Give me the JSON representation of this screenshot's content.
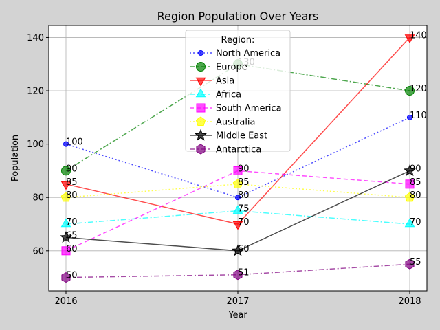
{
  "chart_data": {
    "type": "line",
    "title": "Region Population Over Years",
    "xlabel": "Year",
    "ylabel": "Population",
    "x": [
      2016,
      2017,
      2018
    ],
    "x_tick_labels": [
      "2016",
      "2017",
      "2018"
    ],
    "xlim": [
      2015.9,
      2018.1
    ],
    "ylim": [
      45,
      144.5
    ],
    "y_ticks": [
      60,
      80,
      100,
      120,
      140
    ],
    "y_tick_labels": [
      "60",
      "80",
      "100",
      "120",
      "140"
    ],
    "grid": true,
    "legend": {
      "title": "Region:",
      "placement": "top-center"
    },
    "series": [
      {
        "name": "North America",
        "values": [
          100,
          80,
          110
        ],
        "labels": [
          "100",
          "80",
          "110"
        ],
        "color": "#0000ff",
        "dash": "dotted",
        "marker": "circle",
        "marker_size": "small"
      },
      {
        "name": "Europe",
        "values": [
          90,
          130,
          120
        ],
        "labels": [
          "90",
          "130",
          "120"
        ],
        "color": "#008000",
        "dash": "dashdot",
        "marker": "circle",
        "marker_size": "large"
      },
      {
        "name": "Asia",
        "values": [
          85,
          70,
          140
        ],
        "labels": [
          "85",
          "70",
          "140"
        ],
        "color": "#ff0000",
        "dash": "solid",
        "marker": "triangle-down",
        "marker_size": "large"
      },
      {
        "name": "Africa",
        "values": [
          70,
          75,
          70
        ],
        "labels": [
          "70",
          "75",
          "70"
        ],
        "color": "#00ffff",
        "dash": "dashdot",
        "marker": "triangle-up",
        "marker_size": "large"
      },
      {
        "name": "South America",
        "values": [
          60,
          90,
          85
        ],
        "labels": [
          "60",
          "90",
          "85"
        ],
        "color": "#ff00ff",
        "dash": "dashed",
        "marker": "square",
        "marker_size": "large"
      },
      {
        "name": "Australia",
        "values": [
          80,
          85,
          80
        ],
        "labels": [
          "80",
          "85",
          "80"
        ],
        "color": "#ffff00",
        "dash": "dotted",
        "marker": "pentagon",
        "marker_size": "large"
      },
      {
        "name": "Middle East",
        "values": [
          65,
          60,
          90
        ],
        "labels": [
          "65",
          "60",
          "90"
        ],
        "color": "#000000",
        "dash": "solid",
        "marker": "star",
        "marker_size": "large"
      },
      {
        "name": "Antarctica",
        "values": [
          50,
          51,
          55
        ],
        "labels": [
          "50",
          "51",
          "55"
        ],
        "color": "#800080",
        "dash": "dashdot",
        "marker": "hexagon",
        "marker_size": "large"
      }
    ]
  }
}
